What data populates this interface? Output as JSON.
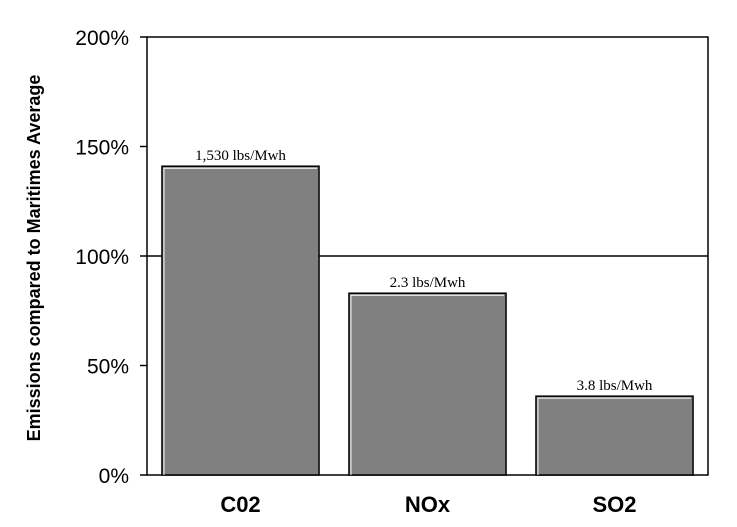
{
  "chart_data": {
    "type": "bar",
    "title": "",
    "xlabel": "",
    "ylabel": "Emissions compared to Maritimes Average",
    "categories": [
      "C02",
      "NOx",
      "SO2"
    ],
    "values": [
      141,
      83,
      36
    ],
    "data_labels": [
      "1,530 lbs/Mwh",
      "2.3 lbs/Mwh",
      "3.8 lbs/Mwh"
    ],
    "ylim": [
      0,
      200
    ],
    "yticks": [
      0,
      50,
      100,
      150,
      200
    ],
    "ytick_labels": [
      "0%",
      "50%",
      "100%",
      "150%",
      "200%"
    ],
    "reference_line": 100,
    "grid": false,
    "bar_color": "#808080",
    "plot_background": "#ffffff"
  }
}
